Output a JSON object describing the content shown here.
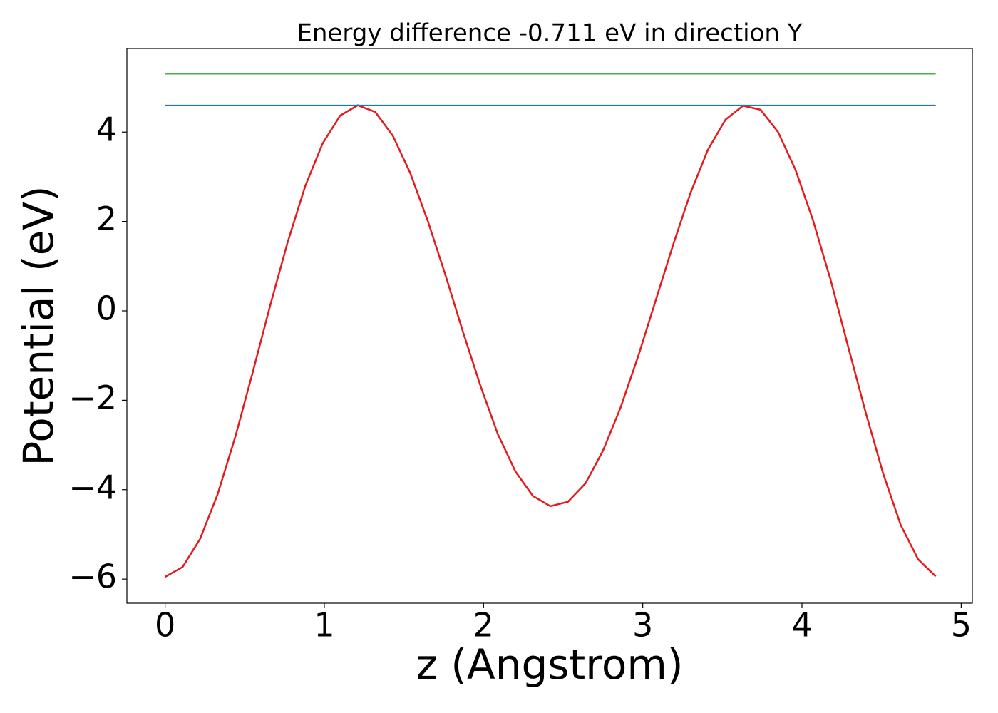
{
  "chart_data": {
    "type": "line",
    "title": "Energy difference -0.711 eV in direction Y",
    "xlabel": "z (Angstrom)",
    "ylabel": "Potential (eV)",
    "series": [
      {
        "color": "#e41a1c",
        "x": [
          0,
          0.11,
          0.22,
          0.33,
          0.44,
          0.55,
          0.66,
          0.77,
          0.88,
          0.99,
          1.1,
          1.21,
          1.32,
          1.43,
          1.54,
          1.65,
          1.76,
          1.87,
          1.98,
          2.09,
          2.2,
          2.31,
          2.42,
          2.53,
          2.64,
          2.75,
          2.86,
          2.97,
          3.08,
          3.19,
          3.3,
          3.41,
          3.52,
          3.63,
          3.74,
          3.85,
          3.96,
          4.07,
          4.18,
          4.29,
          4.4,
          4.51,
          4.62,
          4.73,
          4.84
        ],
        "values": [
          -5.95,
          -5.73,
          -5.1,
          -4.1,
          -2.83,
          -1.38,
          0.12,
          1.54,
          2.79,
          3.75,
          4.37,
          4.6,
          4.45,
          3.92,
          3.08,
          2.01,
          0.81,
          -0.46,
          -1.67,
          -2.76,
          -3.59,
          -4.14,
          -4.37,
          -4.27,
          -3.86,
          -3.13,
          -2.17,
          -1.03,
          0.22,
          1.47,
          2.64,
          3.61,
          4.28,
          4.59,
          4.5,
          4.0,
          3.15,
          2.02,
          0.69,
          -0.8,
          -2.27,
          -3.64,
          -4.79,
          -5.56,
          -5.94
        ]
      },
      {
        "color": "#1f77b4",
        "x": [
          0,
          4.84
        ],
        "values": [
          4.6,
          4.6
        ]
      },
      {
        "color": "#4daf4a",
        "x": [
          0,
          4.84
        ],
        "values": [
          5.3,
          5.3
        ]
      }
    ],
    "xlim": [
      -0.24,
      5.07
    ],
    "xticks": [
      0,
      1,
      2,
      3,
      4,
      5
    ],
    "ylim": [
      -6.54,
      5.87
    ],
    "yticks": [
      {
        "value": -6,
        "label": "−6"
      },
      {
        "value": -4,
        "label": "−4"
      },
      {
        "value": -2,
        "label": "−2"
      },
      0,
      2,
      4
    ],
    "grid": false
  }
}
